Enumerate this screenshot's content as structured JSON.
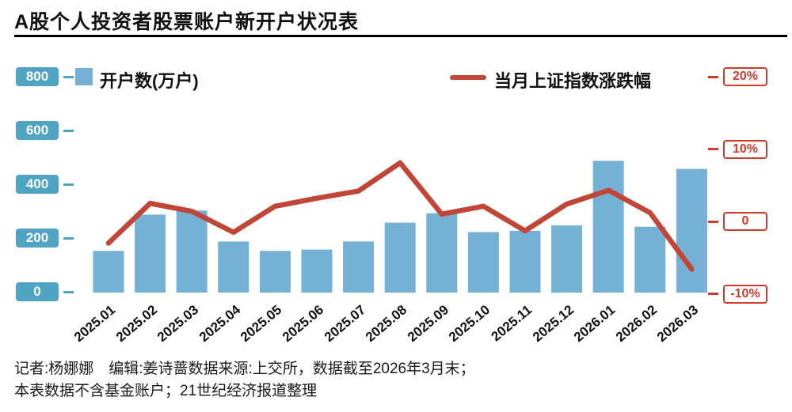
{
  "title": "A股个人投资者股票账户新开户状况表",
  "legend": {
    "bar_label": "开户数(万户)",
    "line_label": "当月上证指数涨跌幅"
  },
  "left_axis_labels": [
    "800",
    "600",
    "400",
    "200",
    "0"
  ],
  "right_axis_labels": [
    "20%",
    "10%",
    "0",
    "-10%"
  ],
  "footer": {
    "line1": "记者:杨娜娜　编辑:姜诗蔷数据来源:上交所，数据截至2026年3月末；",
    "line2": "本表数据不含基金账户；21世纪经济报道整理"
  },
  "colors": {
    "bar": "#75B1D5",
    "axis_box": "#4FA3C3",
    "line": "#C04638",
    "right_axis": "#D03A2B",
    "title_rule": "#000000"
  },
  "chart_data": {
    "type": "bar",
    "title": "A股个人投资者股票账户新开户状况表",
    "categories": [
      "2025.01",
      "2025.02",
      "2025.03",
      "2025.04",
      "2025.05",
      "2025.06",
      "2025.07",
      "2025.08",
      "2025.09",
      "2025.10",
      "2025.11",
      "2025.12",
      "2026.01",
      "2026.02",
      "2026.03"
    ],
    "series": [
      {
        "name": "开户数(万户)",
        "type": "bar",
        "axis": "left",
        "values": [
          155,
          290,
          305,
          190,
          155,
          160,
          190,
          260,
          295,
          225,
          230,
          250,
          490,
          245,
          460
        ]
      },
      {
        "name": "当月上证指数涨跌幅",
        "type": "line",
        "axis": "right",
        "values": [
          -3.0,
          2.5,
          1.4,
          -1.5,
          2.1,
          3.2,
          4.2,
          8.1,
          1.0,
          2.1,
          -1.3,
          2.4,
          4.3,
          1.2,
          -6.6
        ]
      }
    ],
    "left_axis": {
      "ticks": [
        0,
        200,
        400,
        600,
        800
      ],
      "range": [
        0,
        800
      ],
      "unit": "万户"
    },
    "right_axis": {
      "ticks_percent": [
        -10,
        0,
        10,
        20
      ],
      "range": [
        -10,
        20
      ],
      "unit": "%"
    },
    "grid": false,
    "legend_position": "top"
  }
}
